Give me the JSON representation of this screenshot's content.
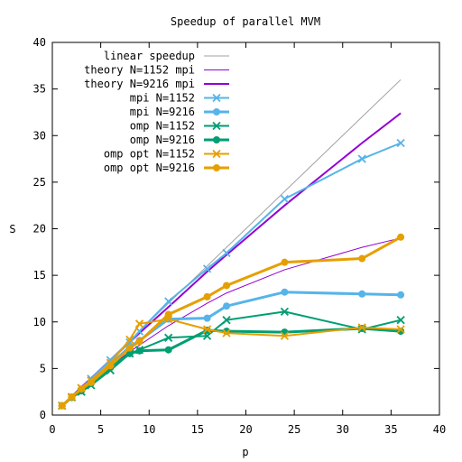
{
  "chart_data": {
    "type": "line",
    "title": "Speedup of parallel MVM",
    "xlabel": "p",
    "ylabel": "S",
    "xlim": [
      0,
      40
    ],
    "ylim": [
      0,
      40
    ],
    "xticks": [
      0,
      5,
      10,
      15,
      20,
      25,
      30,
      35,
      40
    ],
    "yticks": [
      0,
      5,
      10,
      15,
      20,
      25,
      30,
      35,
      40
    ],
    "grid": false,
    "legend_position": "top-left",
    "series": [
      {
        "name": "linear speedup",
        "color": "#a0a0a0",
        "width": 1,
        "marker": "none",
        "x": [
          1,
          36
        ],
        "y": [
          1,
          36
        ]
      },
      {
        "name": "theory N=1152 mpi",
        "color": "#9400d3",
        "width": 1,
        "marker": "none",
        "x": [
          1,
          2,
          3,
          4,
          6,
          8,
          9,
          12,
          16,
          18,
          24,
          32,
          36
        ],
        "y": [
          1,
          1.95,
          2.85,
          3.7,
          5.3,
          6.8,
          7.5,
          9.6,
          12.0,
          13.1,
          15.6,
          18.0,
          19.0
        ]
      },
      {
        "name": "theory N=9216 mpi",
        "color": "#9400d3",
        "width": 2,
        "marker": "none",
        "x": [
          1,
          2,
          3,
          4,
          6,
          8,
          9,
          12,
          16,
          18,
          24,
          32,
          36
        ],
        "y": [
          1,
          2,
          3,
          3.95,
          5.9,
          7.8,
          8.8,
          11.6,
          15.4,
          17.2,
          22.5,
          29.2,
          32.4
        ]
      },
      {
        "name": "mpi N=1152",
        "color": "#56b4e9",
        "width": 2,
        "marker": "x",
        "x": [
          1,
          2,
          3,
          4,
          6,
          8,
          9,
          12,
          16,
          18,
          24,
          32,
          36
        ],
        "y": [
          1,
          1.95,
          2.9,
          3.9,
          5.9,
          7.8,
          9.0,
          12.2,
          15.7,
          17.4,
          23.2,
          27.5,
          29.2
        ]
      },
      {
        "name": "mpi N=9216",
        "color": "#56b4e9",
        "width": 3,
        "marker": "circle",
        "x": [
          1,
          2,
          3,
          4,
          6,
          8,
          9,
          12,
          16,
          18,
          24,
          32,
          36
        ],
        "y": [
          1,
          1.9,
          2.7,
          3.6,
          5.5,
          7.3,
          8.0,
          10.3,
          10.4,
          11.7,
          13.2,
          13.0,
          12.9
        ]
      },
      {
        "name": "omp N=1152",
        "color": "#009e73",
        "width": 2,
        "marker": "x",
        "x": [
          1,
          2,
          3,
          4,
          6,
          8,
          9,
          12,
          16,
          18,
          24,
          32,
          36
        ],
        "y": [
          1,
          1.9,
          2.5,
          3.2,
          4.8,
          6.6,
          7.0,
          8.3,
          8.5,
          10.2,
          11.1,
          9.2,
          10.2
        ]
      },
      {
        "name": "omp N=9216",
        "color": "#009e73",
        "width": 3,
        "marker": "circle",
        "x": [
          1,
          2,
          3,
          4,
          6,
          8,
          9,
          12,
          16,
          18,
          24,
          32,
          36
        ],
        "y": [
          1,
          1.9,
          2.6,
          3.4,
          5.1,
          6.6,
          6.9,
          7.0,
          9.1,
          9.0,
          8.9,
          9.3,
          9.0
        ]
      },
      {
        "name": "omp opt N=1152",
        "color": "#e69f00",
        "width": 2,
        "marker": "x",
        "x": [
          1,
          2,
          3,
          4,
          6,
          8,
          9,
          12,
          16,
          18,
          24,
          32,
          36
        ],
        "y": [
          1,
          1.95,
          2.9,
          3.7,
          5.6,
          8.1,
          9.8,
          10.3,
          9.2,
          8.8,
          8.5,
          9.4,
          9.2
        ]
      },
      {
        "name": "omp opt N=9216",
        "color": "#e69f00",
        "width": 3,
        "marker": "circle",
        "x": [
          1,
          2,
          3,
          4,
          6,
          8,
          9,
          12,
          16,
          18,
          24,
          32,
          36
        ],
        "y": [
          1,
          1.95,
          2.8,
          3.5,
          5.3,
          7.2,
          7.9,
          10.8,
          12.7,
          13.9,
          16.4,
          16.8,
          19.1
        ]
      }
    ]
  }
}
